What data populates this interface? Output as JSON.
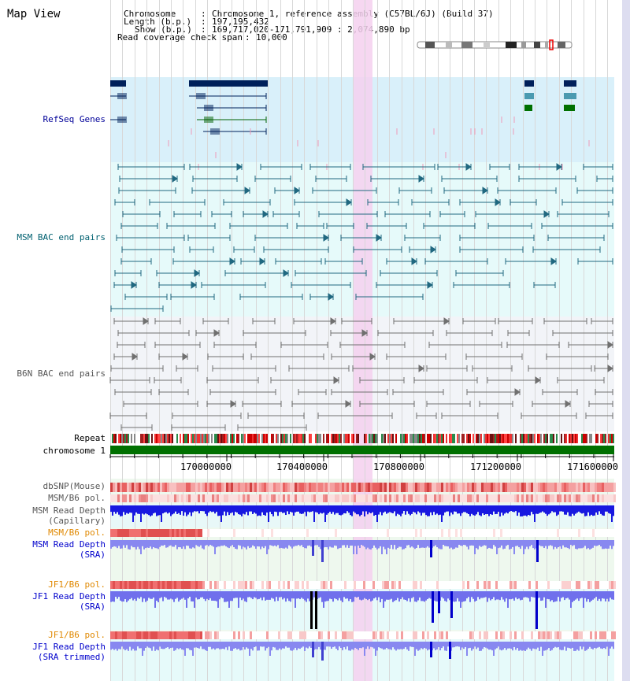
{
  "app": {
    "title": "Map View"
  },
  "header": {
    "chromosome_key": "Chromosome",
    "chromosome_value": "Chromosome 1, reference assembly (C57BL/6J) (Build 37)",
    "length_key": "Length (b.p.)",
    "length_value": "197,195,432",
    "show_key": "Show (b.p.)",
    "show_value": "169,717,020-171,791,909 : 2,074,890 bp",
    "coverage_key": "Read coverage check span",
    "coverage_value": "10,000"
  },
  "tracks": {
    "refseq": "RefSeq Genes",
    "msm_bac": "MSM BAC end pairs",
    "b6n_bac": "B6N BAC end pairs",
    "repeat": "Repeat",
    "chromosome": "chromosome 1",
    "dbsnp": "dbSNP(Mouse)",
    "msm_b6_pol": "MSM/B6 pol.",
    "msm_depth_cap_1": "MSM Read Depth",
    "msm_depth_cap_2": "(Capillary)",
    "msm_b6_pol_2": "MSM/B6 pol.",
    "msm_depth_sra_1": "MSM Read Depth",
    "msm_depth_sra_2": "(SRA)",
    "jf1_b6_pol": "JF1/B6 pol.",
    "jf1_depth_sra_1": "JF1 Read Depth",
    "jf1_depth_sra_2": "(SRA)",
    "jf1_b6_pol_2": "JF1/B6 pol.",
    "jf1_depth_trim_1": "JF1 Read Depth",
    "jf1_depth_trim_2": "(SRA trimmed)"
  },
  "axis": {
    "ticks": [
      "170000000",
      "170400000",
      "170800000",
      "171200000",
      "171600000"
    ]
  },
  "colors": {
    "refseq_bg": "#d9f0fa",
    "msm_bg": "#e6fafa",
    "b6n_bg": "#f2f4f8",
    "highlight": "#f5d0ee",
    "msm_label": "#006070",
    "refseq_label": "#000099",
    "b6n_label": "#555555",
    "gene_navy": "#00205a",
    "chromosome_green": "#007000",
    "pol_label_orange": "#e08800",
    "depth_label_blue": "#0000cc"
  }
}
